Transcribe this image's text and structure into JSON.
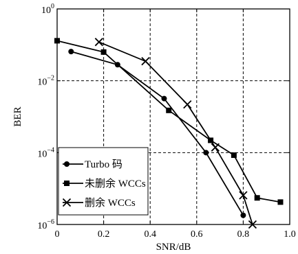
{
  "chart_data": {
    "type": "line",
    "xlabel": "SNR/dB",
    "ylabel": "BER",
    "xlim": [
      0,
      1.0
    ],
    "ylim": [
      1e-06,
      1
    ],
    "yscale": "log",
    "grid": true,
    "legend_position": "bottom-left",
    "x_ticks": [
      {
        "value": 0,
        "label": "0"
      },
      {
        "value": 0.2,
        "label": "0.2"
      },
      {
        "value": 0.4,
        "label": "0.4"
      },
      {
        "value": 0.6,
        "label": "0.6"
      },
      {
        "value": 0.8,
        "label": "0.8"
      },
      {
        "value": 1.0,
        "label": "1.0"
      }
    ],
    "y_ticks": [
      {
        "value": 1,
        "base": "10",
        "exp": "0"
      },
      {
        "value": 0.01,
        "base": "10",
        "exp": "−2"
      },
      {
        "value": 0.0001,
        "base": "10",
        "exp": "−4"
      },
      {
        "value": 1e-06,
        "base": "10",
        "exp": "−6"
      }
    ],
    "series": [
      {
        "name": "Turbo 码",
        "marker": "circle",
        "points": [
          [
            0.06,
            0.065
          ],
          [
            0.26,
            0.028
          ],
          [
            0.46,
            0.0032
          ],
          [
            0.64,
            0.0001
          ],
          [
            0.8,
            1.8e-06
          ]
        ]
      },
      {
        "name": "未删余 WCCs",
        "marker": "square",
        "points": [
          [
            0.0,
            0.13
          ],
          [
            0.2,
            0.063
          ],
          [
            0.48,
            0.0015
          ],
          [
            0.66,
            0.00022
          ],
          [
            0.76,
            8.5e-05
          ],
          [
            0.86,
            5.5e-06
          ],
          [
            0.96,
            4.2e-06
          ]
        ]
      },
      {
        "name": "删余 WCCs",
        "marker": "x",
        "points": [
          [
            0.18,
            0.12
          ],
          [
            0.38,
            0.035
          ],
          [
            0.56,
            0.0022
          ],
          [
            0.68,
            0.00014
          ],
          [
            0.8,
            6.5e-06
          ],
          [
            0.84,
            1e-06
          ]
        ]
      }
    ]
  }
}
